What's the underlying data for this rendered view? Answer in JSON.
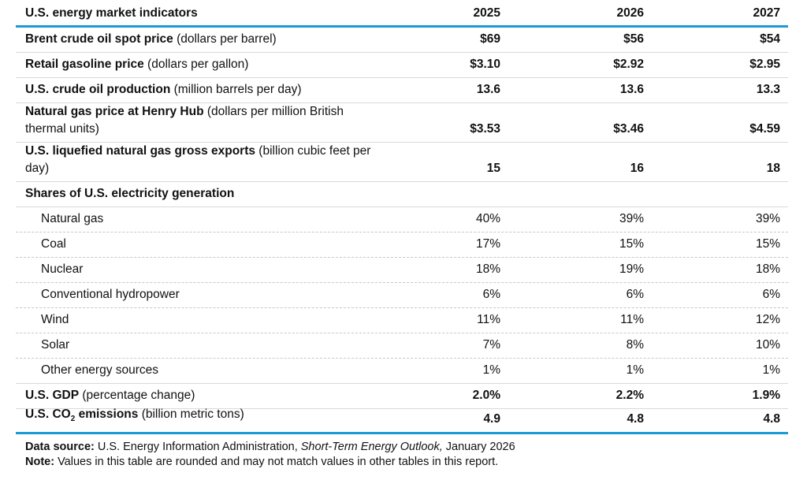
{
  "table": {
    "title": "U.S. energy market indicators",
    "years": [
      "2025",
      "2026",
      "2027"
    ],
    "rows": [
      {
        "name": "Brent crude oil spot price",
        "unit": " (dollars per barrel)",
        "values": [
          "$69",
          "$56",
          "$54"
        ]
      },
      {
        "name": "Retail gasoline price",
        "unit": " (dollars per gallon)",
        "values": [
          "$3.10",
          "$2.92",
          "$2.95"
        ]
      },
      {
        "name": "U.S. crude oil production",
        "unit": " (million barrels per day)",
        "values": [
          "13.6",
          "13.6",
          "13.3"
        ]
      },
      {
        "name": "Natural gas price at Henry Hub",
        "unit": " (dollars per million British thermal units)",
        "values": [
          "$3.53",
          "$3.46",
          "$4.59"
        ]
      },
      {
        "name": "U.S. liquefied natural gas gross exports",
        "unit": " (billion cubic feet per day)",
        "values": [
          "15",
          "16",
          "18"
        ]
      }
    ],
    "shares_heading": "Shares of U.S. electricity generation",
    "shares": [
      {
        "name": "Natural gas",
        "values": [
          "40%",
          "39%",
          "39%"
        ]
      },
      {
        "name": "Coal",
        "values": [
          "17%",
          "15%",
          "15%"
        ]
      },
      {
        "name": "Nuclear",
        "values": [
          "18%",
          "19%",
          "18%"
        ]
      },
      {
        "name": "Conventional hydropower",
        "values": [
          "6%",
          "6%",
          "6%"
        ]
      },
      {
        "name": "Wind",
        "values": [
          "11%",
          "11%",
          "12%"
        ]
      },
      {
        "name": "Solar",
        "values": [
          "7%",
          "8%",
          "10%"
        ]
      },
      {
        "name": "Other energy sources",
        "values": [
          "1%",
          "1%",
          "1%"
        ]
      }
    ],
    "gdp": {
      "name": "U.S. GDP",
      "unit": " (percentage change)",
      "values": [
        "2.0%",
        "2.2%",
        "1.9%"
      ]
    },
    "co2": {
      "name_pre": "U.S. CO",
      "name_sub": "2",
      "name_post": " emissions",
      "unit": " (billion metric tons)",
      "values": [
        "4.9",
        "4.8",
        "4.8"
      ]
    }
  },
  "footer": {
    "source_label": "Data source:",
    "source_text": " U.S. Energy Information Administration, ",
    "source_italic": "Short-Term Energy Outlook,",
    "source_date": " January 2026",
    "note_label": "Note:",
    "note_text": " Values in this table are rounded and may not match values in other tables in this report."
  },
  "colors": {
    "accent_rule": "#1a9ad6",
    "row_rule": "#d9d9d9"
  }
}
